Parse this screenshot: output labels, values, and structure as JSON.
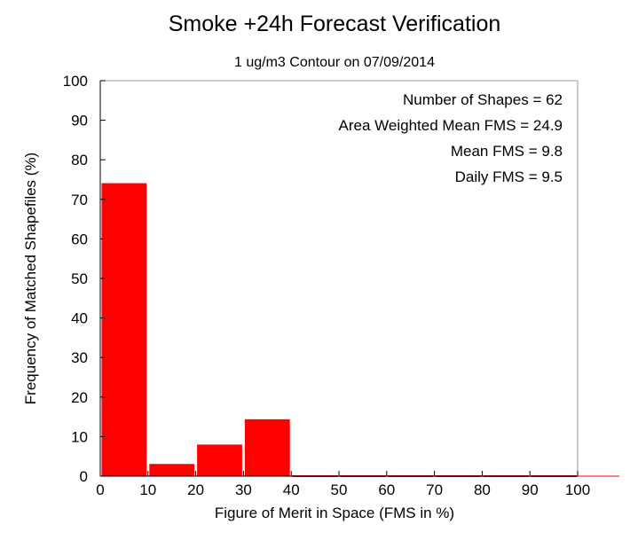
{
  "chart_data": {
    "type": "bar",
    "title": "Smoke +24h Forecast Verification",
    "subtitle": "1 ug/m3 Contour on 07/09/2014",
    "xlabel": "Figure of Merit in Space (FMS in %)",
    "ylabel": "Frequency of Matched Shapefiles (%)",
    "xlim": [
      0,
      100
    ],
    "ylim": [
      0,
      100
    ],
    "x_ticks": [
      "0",
      "10",
      "20",
      "30",
      "40",
      "50",
      "60",
      "70",
      "80",
      "90",
      "100"
    ],
    "y_ticks": [
      "0",
      "10",
      "20",
      "30",
      "40",
      "50",
      "60",
      "70",
      "80",
      "90",
      "100"
    ],
    "bins": [
      {
        "start": 0,
        "end": 10,
        "value": 74.2
      },
      {
        "start": 10,
        "end": 20,
        "value": 3.2
      },
      {
        "start": 20,
        "end": 30,
        "value": 8.1
      },
      {
        "start": 30,
        "end": 40,
        "value": 14.5
      },
      {
        "start": 40,
        "end": 50,
        "value": 0
      },
      {
        "start": 50,
        "end": 60,
        "value": 0
      },
      {
        "start": 60,
        "end": 70,
        "value": 0
      },
      {
        "start": 70,
        "end": 80,
        "value": 0
      },
      {
        "start": 80,
        "end": 90,
        "value": 0
      },
      {
        "start": 90,
        "end": 100,
        "value": 0
      }
    ],
    "bar_color": "#ff0000",
    "bar_edge_color": "#ffffff",
    "grid": false,
    "annotations": [
      "Number of Shapes = 62",
      "Area Weighted Mean FMS = 24.9",
      "Mean FMS = 9.8",
      "Daily FMS = 9.5"
    ]
  }
}
